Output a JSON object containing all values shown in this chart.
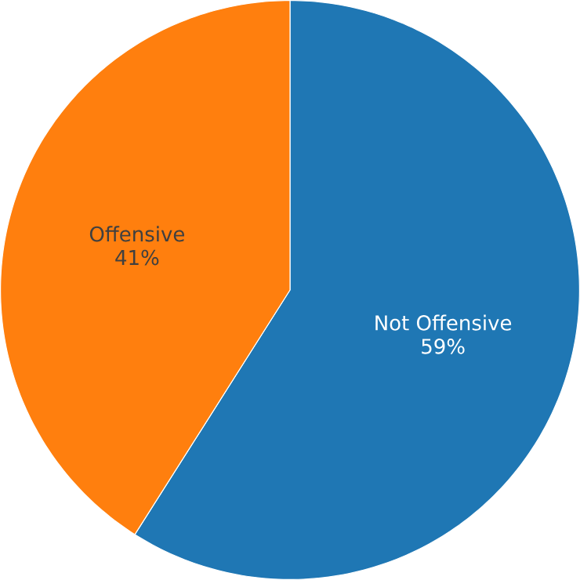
{
  "chart_data": {
    "type": "pie",
    "categories": [
      "Not Offensive",
      "Offensive"
    ],
    "values": [
      59,
      41
    ],
    "colors": [
      "#1f77b4",
      "#ff7f0e"
    ],
    "value_labels": [
      "59%",
      "41%"
    ]
  }
}
